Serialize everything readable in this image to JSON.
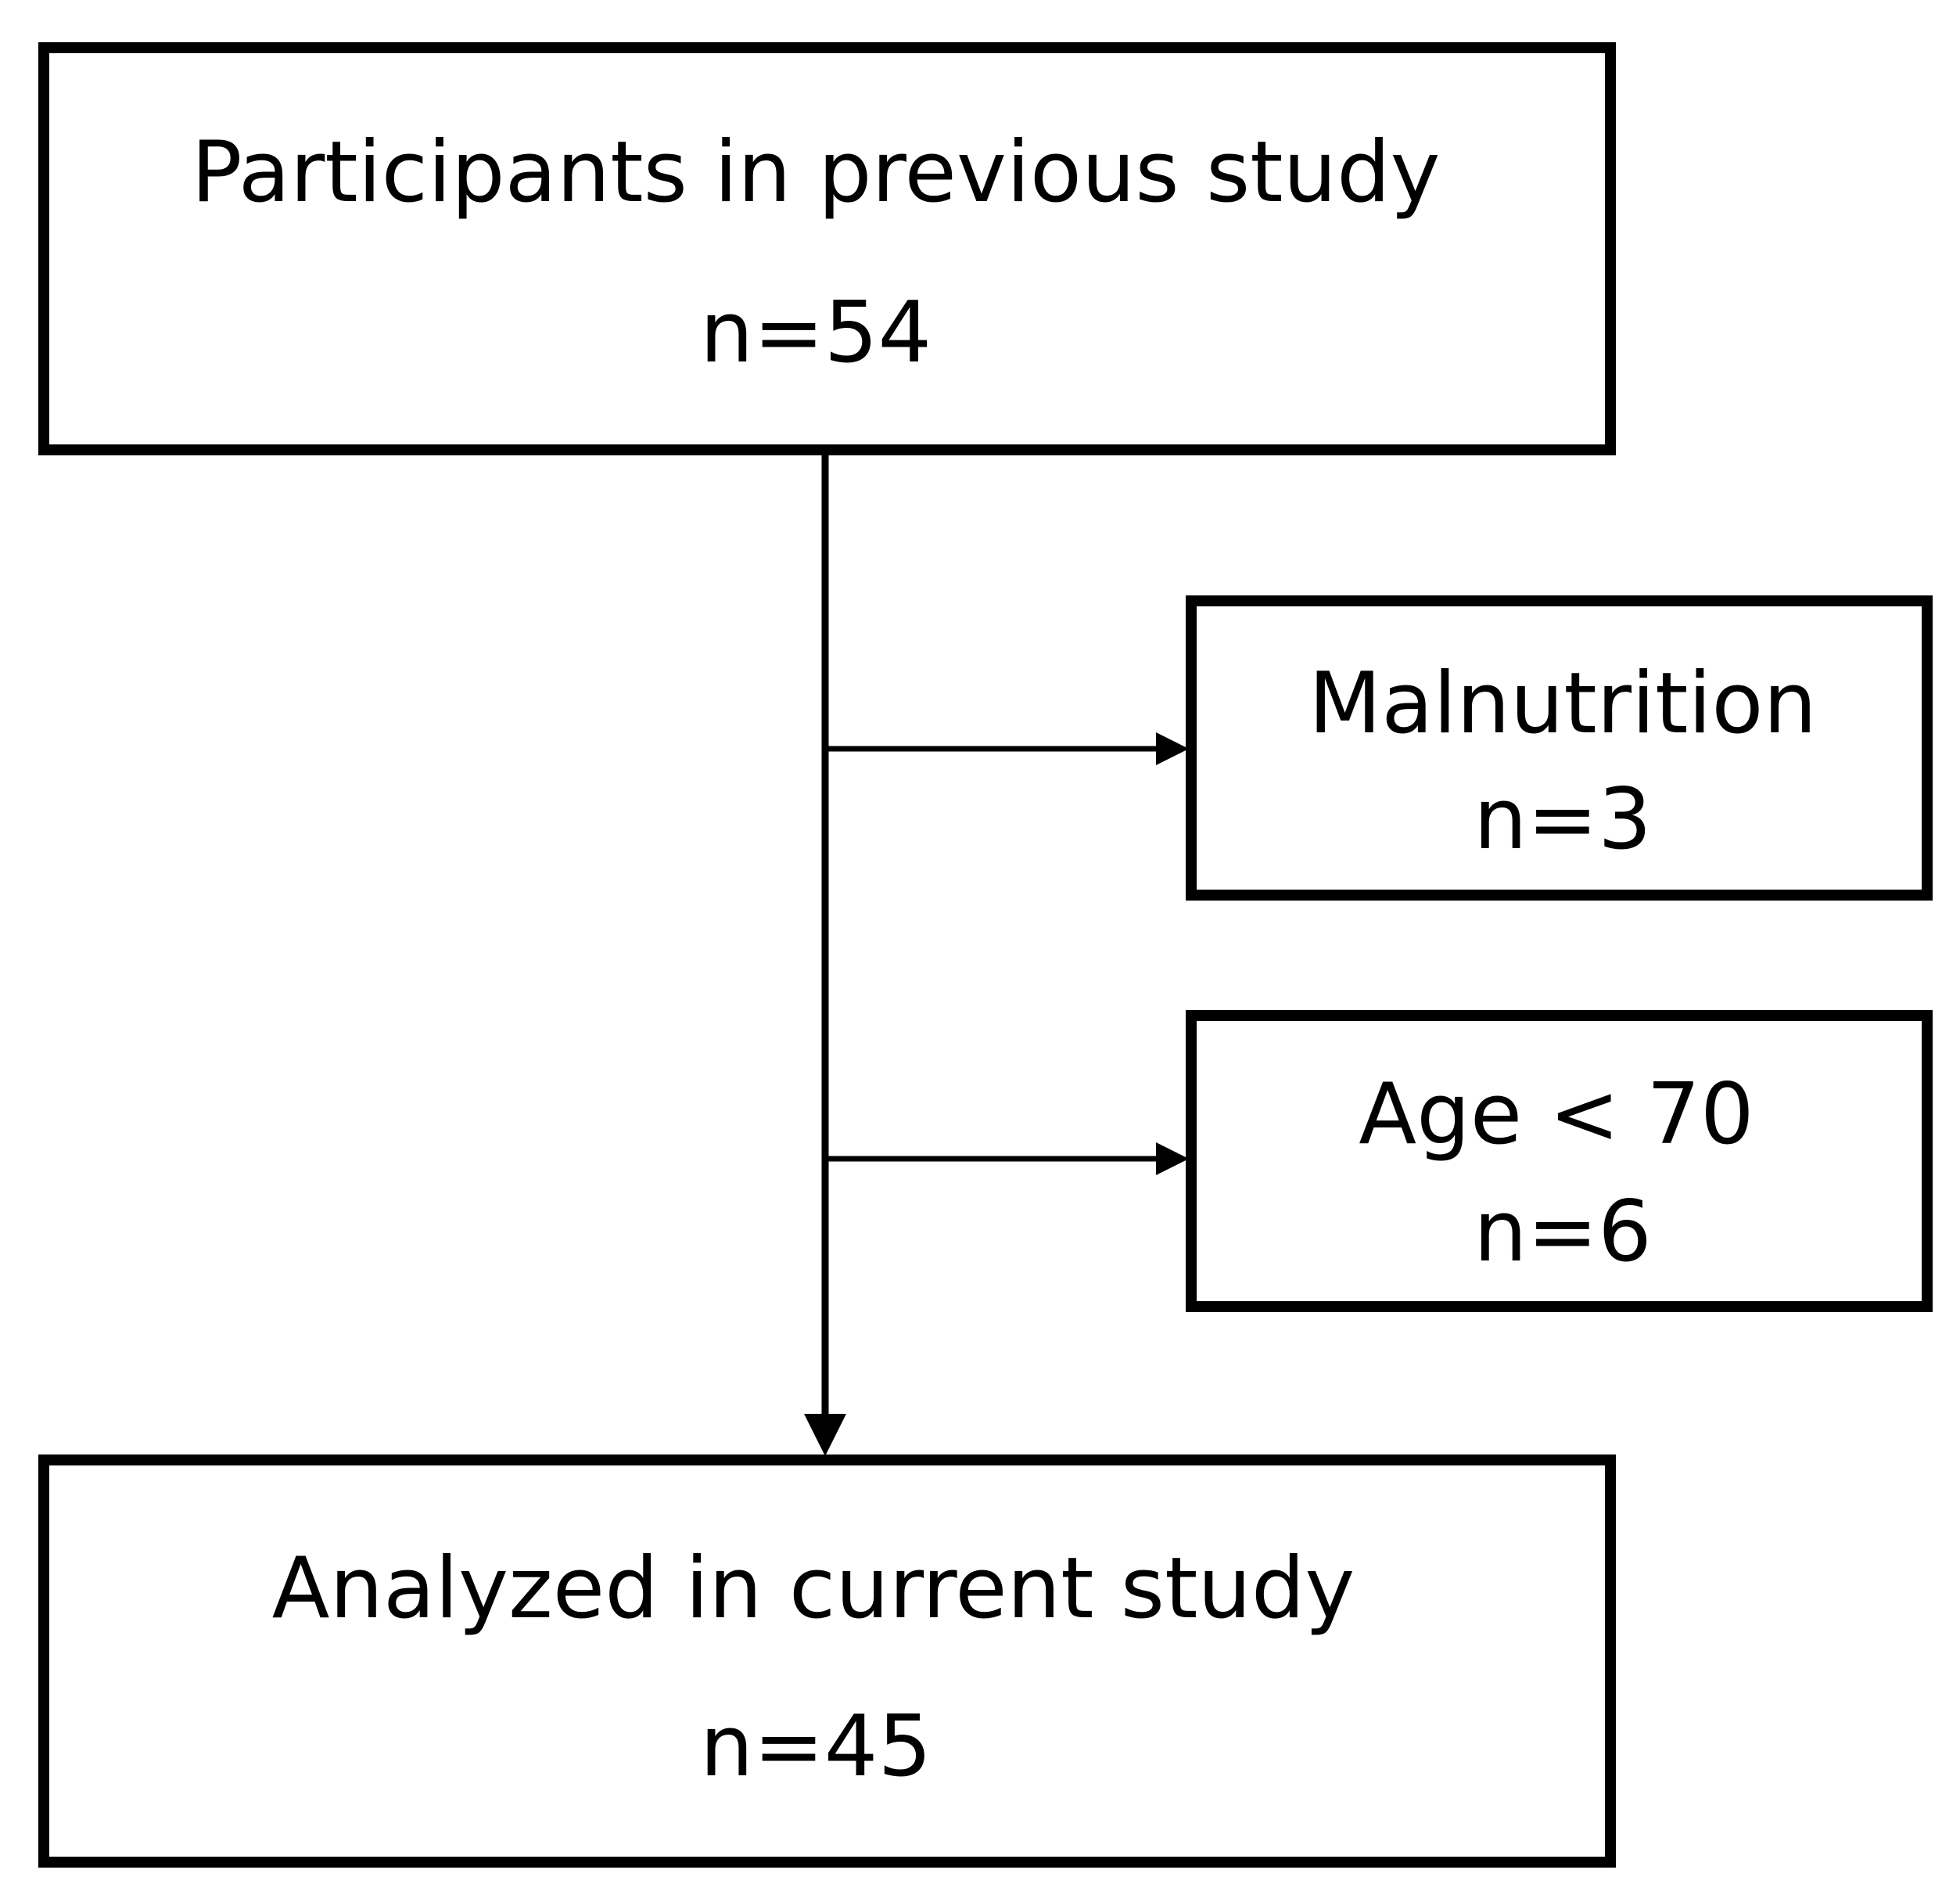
{
  "nodes": [
    {
      "label": "Participants in previous study",
      "count": "n=54"
    },
    {
      "label": "Malnutrition",
      "count": "n=3"
    },
    {
      "label": "Age < 70",
      "count": "n=6"
    },
    {
      "label": "Analyzed in current study",
      "count": "n=45"
    }
  ]
}
